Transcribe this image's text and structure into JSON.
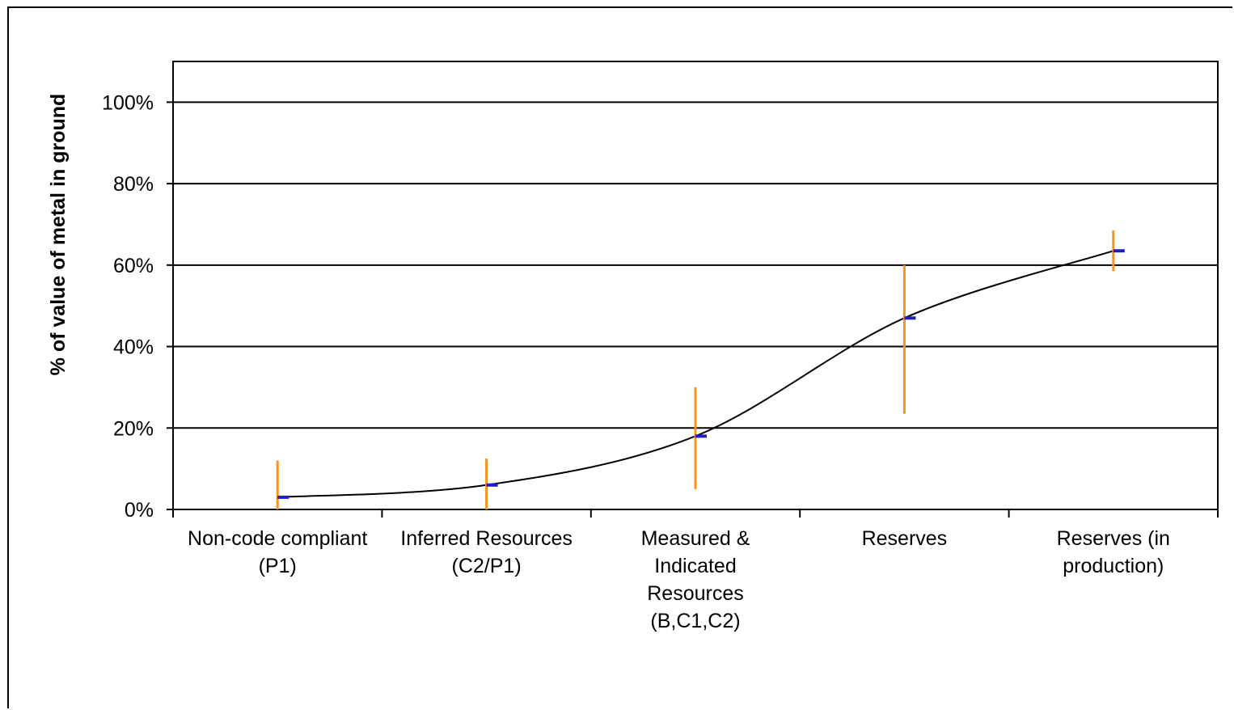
{
  "chart_data": {
    "type": "line",
    "title": "",
    "ylabel": "% of value of metal in ground",
    "xlabel": "",
    "ylim": [
      0,
      1.1
    ],
    "yticks": [
      0,
      0.2,
      0.4,
      0.6,
      0.8,
      1.0
    ],
    "ytick_labels": [
      "0%",
      "20%",
      "40%",
      "60%",
      "80%",
      "100%"
    ],
    "grid": true,
    "legend": "none",
    "categories": [
      [
        "Non-code compliant",
        "(P1)"
      ],
      [
        "Inferred Resources",
        "(C2/P1)"
      ],
      [
        "Measured &",
        "Indicated",
        "Resources",
        "(B,C1,C2)"
      ],
      [
        "Reserves"
      ],
      [
        "Reserves (in",
        "production)"
      ]
    ],
    "series": [
      {
        "values": [
          0.03,
          0.06,
          0.18,
          0.47,
          0.635
        ],
        "error_low": [
          0.0,
          0.0,
          0.05,
          0.235,
          0.585
        ],
        "error_high": [
          0.12,
          0.125,
          0.3,
          0.6,
          0.685
        ]
      }
    ],
    "colors": {
      "error_bar": "#f7941d",
      "marker": "#1f1fc0",
      "curve": "#000000",
      "grid": "#000000"
    }
  }
}
